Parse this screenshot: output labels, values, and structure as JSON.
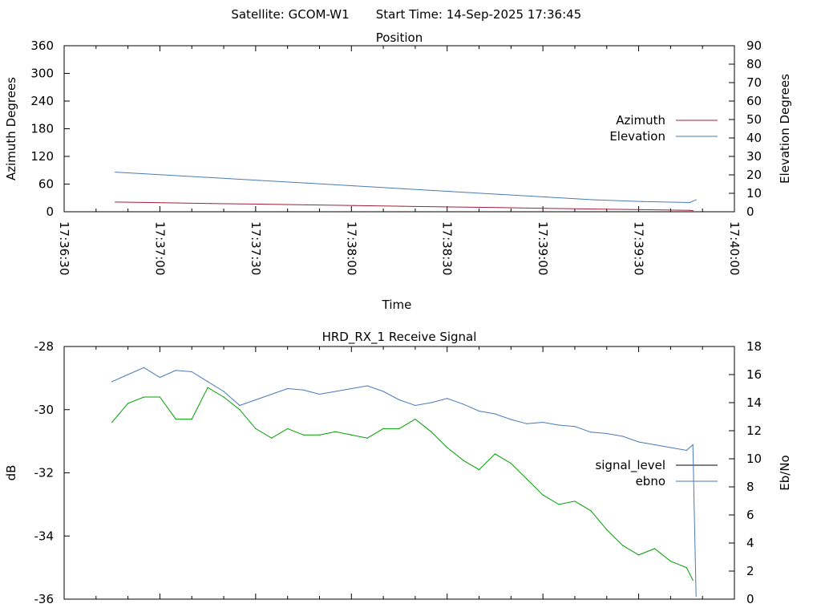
{
  "header": {
    "satellite": "Satellite: GCOM-W1",
    "start_time": "Start Time: 14-Sep-2025 17:36:45"
  },
  "chart_data": [
    {
      "type": "line",
      "title": "Position",
      "xlabel": "Time",
      "ylabel": "Azimuth Degrees",
      "y2label": "Elevation Degrees",
      "x_ticks": [
        "17:36:30",
        "17:37:00",
        "17:37:30",
        "17:38:00",
        "17:38:30",
        "17:39:00",
        "17:39:30",
        "17:40:00"
      ],
      "xlim": [
        "17:36:30",
        "17:40:00"
      ],
      "ylim": [
        0,
        360
      ],
      "y_ticks": [
        "0",
        "60",
        "120",
        "180",
        "240",
        "300",
        "360"
      ],
      "y2lim": [
        0,
        90
      ],
      "y2_ticks": [
        "0",
        "10",
        "20",
        "30",
        "40",
        "50",
        "60",
        "70",
        "80",
        "90"
      ],
      "grid": false,
      "legend_placement": "right",
      "series": [
        {
          "name": "Azimuth",
          "axis": "left",
          "color": "#a0203a",
          "x": [
            "17:36:46",
            "17:37:01",
            "17:37:16",
            "17:37:31",
            "17:37:46",
            "17:38:01",
            "17:38:16",
            "17:38:31",
            "17:38:46",
            "17:39:01",
            "17:39:16",
            "17:39:31",
            "17:39:46",
            "17:39:47"
          ],
          "y": [
            21,
            19.5,
            18,
            16.5,
            15,
            13.5,
            12,
            10.5,
            9,
            7.5,
            6,
            4.5,
            3,
            2.5
          ]
        },
        {
          "name": "Elevation",
          "axis": "right",
          "color": "#4a7ab8",
          "x": [
            "17:36:46",
            "17:37:01",
            "17:37:16",
            "17:37:31",
            "17:37:46",
            "17:38:01",
            "17:38:16",
            "17:38:31",
            "17:38:46",
            "17:39:01",
            "17:39:16",
            "17:39:31",
            "17:39:46",
            "17:39:48"
          ],
          "y": [
            21.5,
            20,
            18.5,
            17,
            15.5,
            14,
            12.5,
            11,
            9.5,
            8,
            6.5,
            5.5,
            5,
            6.5
          ]
        }
      ]
    },
    {
      "type": "line",
      "title": "HRD_RX_1 Receive Signal",
      "xlabel": "",
      "ylabel": "dB",
      "y2label": "Eb/No",
      "xlim": [
        "17:36:30",
        "17:40:00"
      ],
      "ylim": [
        -36,
        -28
      ],
      "y_ticks": [
        "-36",
        "-34",
        "-32",
        "-30",
        "-28"
      ],
      "y2lim": [
        0,
        18
      ],
      "y2_ticks": [
        "0",
        "2",
        "4",
        "6",
        "8",
        "10",
        "12",
        "14",
        "16",
        "18"
      ],
      "grid": false,
      "legend_placement": "right",
      "series": [
        {
          "name": "signal_level",
          "axis": "left",
          "color": "#00a000",
          "legend_color": "#000000",
          "x": [
            "17:36:45",
            "17:36:50",
            "17:36:55",
            "17:37:00",
            "17:37:05",
            "17:37:10",
            "17:37:15",
            "17:37:20",
            "17:37:25",
            "17:37:30",
            "17:37:35",
            "17:37:40",
            "17:37:45",
            "17:37:50",
            "17:37:55",
            "17:38:00",
            "17:38:05",
            "17:38:10",
            "17:38:15",
            "17:38:20",
            "17:38:25",
            "17:38:30",
            "17:38:35",
            "17:38:40",
            "17:38:45",
            "17:38:50",
            "17:38:55",
            "17:39:00",
            "17:39:05",
            "17:39:10",
            "17:39:15",
            "17:39:20",
            "17:39:25",
            "17:39:30",
            "17:39:35",
            "17:39:40",
            "17:39:45",
            "17:39:47"
          ],
          "y": [
            -30.4,
            -29.8,
            -29.6,
            -29.6,
            -30.3,
            -30.3,
            -29.3,
            -29.6,
            -30.0,
            -30.6,
            -30.9,
            -30.6,
            -30.8,
            -30.8,
            -30.7,
            -30.8,
            -30.9,
            -30.6,
            -30.6,
            -30.3,
            -30.7,
            -31.2,
            -31.6,
            -31.9,
            -31.4,
            -31.7,
            -32.2,
            -32.7,
            -33.0,
            -32.9,
            -33.2,
            -33.8,
            -34.3,
            -34.6,
            -34.4,
            -34.8,
            -35.0,
            -35.4
          ]
        },
        {
          "name": "ebno",
          "axis": "right",
          "color": "#4a7ab8",
          "x": [
            "17:36:45",
            "17:36:50",
            "17:36:55",
            "17:37:00",
            "17:37:05",
            "17:37:10",
            "17:37:15",
            "17:37:20",
            "17:37:25",
            "17:37:30",
            "17:37:35",
            "17:37:40",
            "17:37:45",
            "17:37:50",
            "17:37:55",
            "17:38:00",
            "17:38:05",
            "17:38:10",
            "17:38:15",
            "17:38:20",
            "17:38:25",
            "17:38:30",
            "17:38:35",
            "17:38:40",
            "17:38:45",
            "17:38:50",
            "17:38:55",
            "17:39:00",
            "17:39:05",
            "17:39:10",
            "17:39:15",
            "17:39:20",
            "17:39:25",
            "17:39:30",
            "17:39:35",
            "17:39:40",
            "17:39:45",
            "17:39:47",
            "17:39:48"
          ],
          "y": [
            15.5,
            16.0,
            16.5,
            15.8,
            16.3,
            16.2,
            15.5,
            14.8,
            13.8,
            14.2,
            14.6,
            15.0,
            14.9,
            14.6,
            14.8,
            15.0,
            15.2,
            14.8,
            14.2,
            13.8,
            14.0,
            14.3,
            13.9,
            13.4,
            13.2,
            12.8,
            12.5,
            12.6,
            12.4,
            12.3,
            11.9,
            11.8,
            11.6,
            11.2,
            11.0,
            10.8,
            10.6,
            11.0,
            0.2
          ]
        }
      ]
    }
  ]
}
